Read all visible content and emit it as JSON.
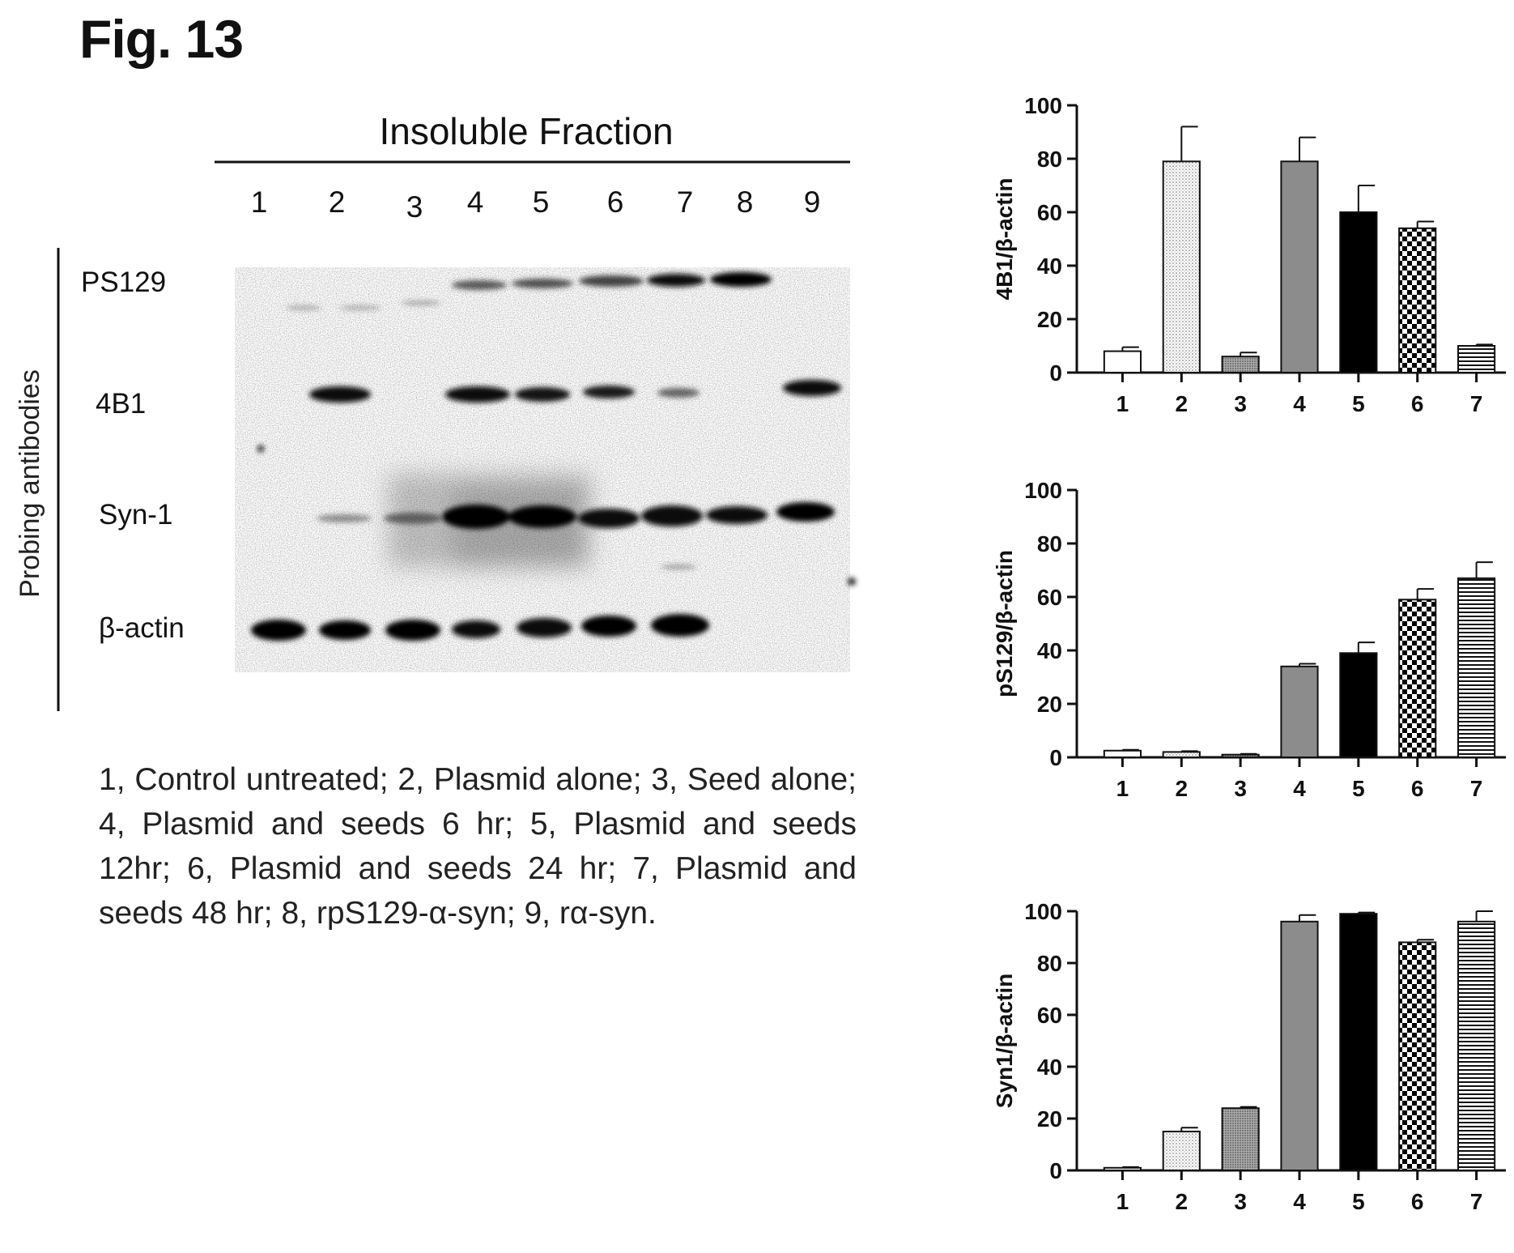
{
  "figure": {
    "title": "Fig. 13",
    "blot": {
      "header": "Insoluble Fraction",
      "side_label": "Probing antibodies",
      "lanes": [
        "1",
        "2",
        "3",
        "4",
        "5",
        "6",
        "7",
        "8",
        "9"
      ],
      "rows": [
        "PS129",
        "4B1",
        "Syn-1",
        "β-actin"
      ]
    },
    "caption": "1, Control untreated; 2, Plasmid alone; 3, Seed alone; 4, Plasmid and seeds 6 hr; 5, Plasmid and seeds 12hr; 6, Plasmid and seeds 24 hr; 7, Plasmid and seeds 48 hr; 8, rpS129-α-syn; 9, rα-syn."
  },
  "chart_data": [
    {
      "type": "bar",
      "ylabel": "4B1/β-actin",
      "categories": [
        "1",
        "2",
        "3",
        "4",
        "5",
        "6",
        "7"
      ],
      "values": [
        8,
        79,
        6,
        79,
        60,
        54,
        10
      ],
      "errors": [
        1.5,
        13,
        1.5,
        9,
        10,
        2.5,
        0.5
      ],
      "ylim": [
        0,
        100
      ],
      "yticks": [
        0,
        20,
        40,
        60,
        80,
        100
      ],
      "patterns": [
        "white",
        "dots",
        "dense",
        "gray",
        "black",
        "checker",
        "hlines"
      ]
    },
    {
      "type": "bar",
      "ylabel": "pS129/β-actin",
      "categories": [
        "1",
        "2",
        "3",
        "4",
        "5",
        "6",
        "7"
      ],
      "values": [
        2.5,
        2,
        1,
        34,
        39,
        59,
        67
      ],
      "errors": [
        0.3,
        0.3,
        0.3,
        1,
        4,
        4,
        6
      ],
      "ylim": [
        0,
        100
      ],
      "yticks": [
        0,
        20,
        40,
        60,
        80,
        100
      ],
      "patterns": [
        "white",
        "dots",
        "dense",
        "gray",
        "black",
        "checker",
        "hlines"
      ]
    },
    {
      "type": "bar",
      "ylabel": "Syn1/β-actin",
      "categories": [
        "1",
        "2",
        "3",
        "4",
        "5",
        "6",
        "7"
      ],
      "values": [
        1,
        15,
        24,
        96,
        99,
        88,
        96
      ],
      "errors": [
        0.3,
        1.5,
        0.5,
        2.5,
        0.5,
        1,
        4
      ],
      "ylim": [
        0,
        100
      ],
      "yticks": [
        0,
        20,
        40,
        60,
        80,
        100
      ],
      "patterns": [
        "white",
        "dots",
        "dense",
        "gray",
        "black",
        "checker",
        "hlines"
      ]
    }
  ]
}
